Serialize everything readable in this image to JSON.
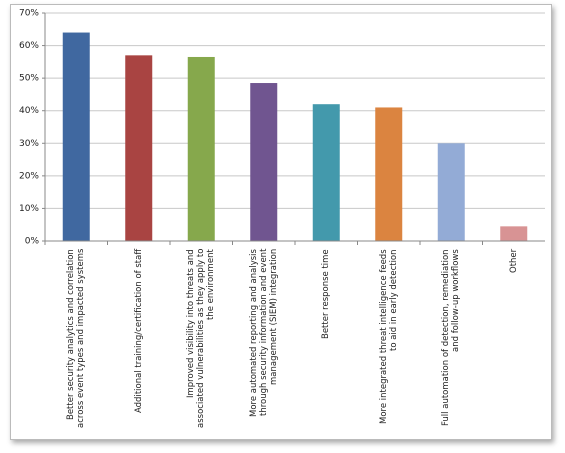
{
  "chart_data": {
    "type": "bar",
    "categories": [
      "Better security analytics and correlation across event types and impacted systems",
      "Additional training/certification of staff",
      "Improved visibility into threats and associated vulnerabilities as they apply to the environment",
      "More automated reporting and analysis through security information and event management (SIEM) integration",
      "Better response time",
      "More integrated threat intelligence feeds to aid in early detection",
      "Full automation of detection, remediation and follow-up workflows",
      "Other"
    ],
    "values": [
      64,
      57,
      56.5,
      48.5,
      42,
      41,
      30,
      4.5
    ],
    "colors": [
      "#4068a0",
      "#a94442",
      "#86a84c",
      "#705590",
      "#4399ac",
      "#db8440",
      "#93abd6",
      "#d89394"
    ],
    "ylim": [
      0,
      70
    ],
    "yticks": [
      {
        "value": 0,
        "label": "0%"
      },
      {
        "value": 10,
        "label": "10%"
      },
      {
        "value": 20,
        "label": "20%"
      },
      {
        "value": 30,
        "label": "30%"
      },
      {
        "value": 40,
        "label": "40%"
      },
      {
        "value": 50,
        "label": "50%"
      },
      {
        "value": 60,
        "label": "60%"
      },
      {
        "value": 70,
        "label": "70%"
      }
    ],
    "grid": true
  }
}
